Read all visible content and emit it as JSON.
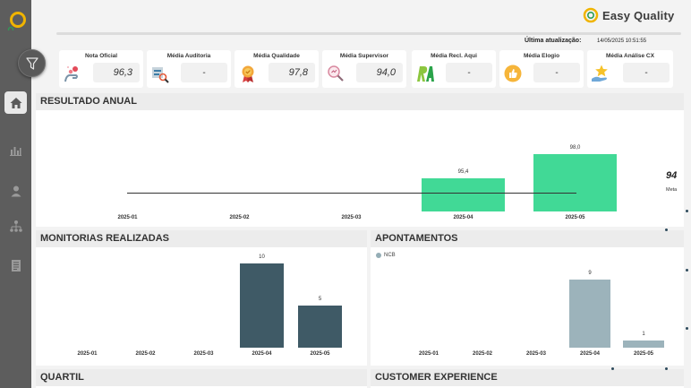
{
  "brand": {
    "name": "Easy Quality",
    "accent": "#f0b400"
  },
  "header": {
    "updated_label": "Última atualização:",
    "updated_value": "14/05/2025 10:51:55"
  },
  "sidebar": {
    "items": [
      {
        "name": "home",
        "icon": "home-icon",
        "active": true
      },
      {
        "name": "reports",
        "icon": "bar-chart-icon",
        "active": false
      },
      {
        "name": "users",
        "icon": "person-icon",
        "active": false
      },
      {
        "name": "hierarchy",
        "icon": "org-chart-icon",
        "active": false
      },
      {
        "name": "documents",
        "icon": "document-icon",
        "active": false
      }
    ]
  },
  "kpis": [
    {
      "title": "Nota Oficial",
      "value": "96,3",
      "icon": "hand-heart-icon"
    },
    {
      "title": "Média Auditoria",
      "value": "-",
      "icon": "audit-search-icon"
    },
    {
      "title": "Média Qualidade",
      "value": "97,8",
      "icon": "medal-icon"
    },
    {
      "title": "Média Supervisor",
      "value": "94,0",
      "icon": "magnifier-icon"
    },
    {
      "title": "Média Recl. Aqui",
      "value": "-",
      "icon": "ra-logo-icon"
    },
    {
      "title": "Média Elogio",
      "value": "-",
      "icon": "thumbs-up-icon"
    },
    {
      "title": "Média Análise CX",
      "value": "-",
      "icon": "star-hand-icon"
    }
  ],
  "panels": {
    "resultado": {
      "title": "RESULTADO ANUAL"
    },
    "monitorias": {
      "title": "MONITORIAS REALIZADAS"
    },
    "apontamentos": {
      "title": "APONTAMENTOS"
    },
    "quartil": {
      "title": "QUARTIL"
    },
    "cx": {
      "title": "CUSTOMER EXPERIENCE"
    }
  },
  "chart_data": [
    {
      "type": "bar",
      "categories": [
        "2025-01",
        "2025-02",
        "2025-03",
        "2025-04",
        "2025-05"
      ],
      "values": [
        null,
        null,
        null,
        95.4,
        98.0
      ],
      "value_labels": [
        "",
        "",
        "",
        "95,4",
        "98,0"
      ],
      "target": {
        "value": 94,
        "label": "94",
        "name": "Meta"
      },
      "ylim": [
        92,
        100
      ],
      "color": "#41d996"
    },
    {
      "type": "bar",
      "categories": [
        "2025-01",
        "2025-02",
        "2025-03",
        "2025-04",
        "2025-05"
      ],
      "values": [
        null,
        null,
        null,
        10,
        5
      ],
      "value_labels": [
        "",
        "",
        "",
        "10",
        "5"
      ],
      "ylim": [
        0,
        10
      ],
      "color": "#3f5a66"
    },
    {
      "type": "bar",
      "categories": [
        "2025-01",
        "2025-02",
        "2025-03",
        "2025-04",
        "2025-05"
      ],
      "series": [
        {
          "name": "NCB",
          "values": [
            null,
            null,
            null,
            9,
            1
          ]
        }
      ],
      "value_labels": [
        "",
        "",
        "",
        "9",
        "1"
      ],
      "ylim": [
        0,
        9
      ],
      "color": "#9cb3bb"
    }
  ]
}
